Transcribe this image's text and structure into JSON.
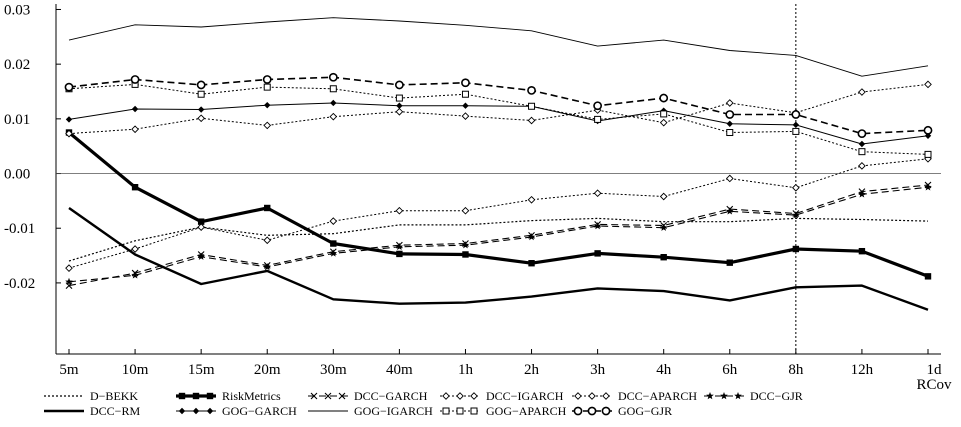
{
  "chart_data": {
    "type": "line",
    "title": "",
    "xlabel": "",
    "ylabel": "",
    "ylim": [
      -0.033,
      0.031
    ],
    "grid": false,
    "legend_position": "bottom",
    "categories": [
      "5m",
      "10m",
      "15m",
      "20m",
      "30m",
      "40m",
      "1h",
      "2h",
      "3h",
      "4h",
      "6h",
      "8h",
      "12h",
      "1d RCov"
    ],
    "y_ticks": [
      0.03,
      0.02,
      0.01,
      0.0,
      -0.01,
      -0.02
    ],
    "y_tick_labels": [
      "0.03",
      "0.02",
      "0.01",
      "0.00",
      "-0.01",
      "-0.02"
    ],
    "reference_line": 0.0,
    "vertical_marker": "8h",
    "series": [
      {
        "name": "D−BEKK",
        "color": "#000000",
        "dash": "2,2",
        "width": 1.2,
        "marker": "none",
        "values": [
          -0.016,
          -0.0123,
          -0.0098,
          -0.0113,
          -0.011,
          -0.0094,
          -0.0094,
          -0.0086,
          -0.0082,
          -0.0088,
          -0.0088,
          -0.0082,
          -0.0084,
          -0.0087
        ]
      },
      {
        "name": "RiskMetrics",
        "color": "#000000",
        "dash": "",
        "width": 3.2,
        "marker": "square-filled",
        "values": [
          0.0075,
          -0.0025,
          -0.0088,
          -0.0063,
          -0.0128,
          -0.0147,
          -0.0148,
          -0.0164,
          -0.0146,
          -0.0153,
          -0.0163,
          -0.0138,
          -0.0142,
          -0.0188
        ]
      },
      {
        "name": "DCC−GARCH",
        "color": "#000000",
        "dash": "7,4",
        "width": 1.1,
        "marker": "x",
        "values": [
          -0.0205,
          -0.0182,
          -0.0148,
          -0.0168,
          -0.0143,
          -0.0131,
          -0.0128,
          -0.0113,
          -0.0093,
          -0.0095,
          -0.0065,
          -0.0073,
          -0.0033,
          -0.0021
        ]
      },
      {
        "name": "DCC−IGARCH",
        "color": "#000000",
        "dash": "2,2",
        "width": 1.0,
        "marker": "diamond-open",
        "values": [
          0.0073,
          0.0081,
          0.0101,
          0.0088,
          0.0104,
          0.0113,
          0.0105,
          0.0097,
          0.0116,
          0.0093,
          0.0129,
          0.0111,
          0.0149,
          0.0163
        ]
      },
      {
        "name": "DCC−APARCH",
        "color": "#000000",
        "dash": "2,2",
        "width": 1.0,
        "marker": "diamond-open",
        "values": [
          -0.0173,
          -0.0138,
          -0.0098,
          -0.0122,
          -0.0087,
          -0.0068,
          -0.0068,
          -0.0048,
          -0.0036,
          -0.0042,
          -0.0009,
          -0.0026,
          0.0014,
          0.0027
        ]
      },
      {
        "name": "DCC−GJR",
        "color": "#000000",
        "dash": "7,4",
        "width": 1.1,
        "marker": "star",
        "values": [
          -0.0198,
          -0.0186,
          -0.0152,
          -0.0171,
          -0.0146,
          -0.0134,
          -0.0131,
          -0.0116,
          -0.0096,
          -0.0099,
          -0.0069,
          -0.0076,
          -0.0038,
          -0.0025
        ]
      },
      {
        "name": "DCC−RM",
        "color": "#000000",
        "dash": "",
        "width": 2.4,
        "marker": "none",
        "values": [
          -0.0063,
          -0.0148,
          -0.0202,
          -0.0178,
          -0.023,
          -0.0238,
          -0.0236,
          -0.0225,
          -0.021,
          -0.0215,
          -0.0232,
          -0.0208,
          -0.0205,
          -0.0249
        ]
      },
      {
        "name": "GOG−GARCH",
        "color": "#000000",
        "dash": "",
        "width": 1.0,
        "marker": "diamond-filled",
        "values": [
          0.0099,
          0.0118,
          0.0117,
          0.0125,
          0.0129,
          0.0124,
          0.0124,
          0.0123,
          0.0096,
          0.0115,
          0.0091,
          0.0089,
          0.0054,
          0.0069
        ]
      },
      {
        "name": "GOG−IGARCH",
        "color": "#000000",
        "dash": "",
        "width": 0.9,
        "marker": "none",
        "values": [
          0.0244,
          0.0272,
          0.0268,
          0.0277,
          0.0285,
          0.0279,
          0.0271,
          0.0261,
          0.0233,
          0.0244,
          0.0225,
          0.0216,
          0.0178,
          0.0197
        ]
      },
      {
        "name": "GOG−APARCH",
        "color": "#000000",
        "dash": "2,2",
        "width": 1.0,
        "marker": "square-open",
        "values": [
          0.0155,
          0.0163,
          0.0145,
          0.0158,
          0.0155,
          0.0138,
          0.0145,
          0.0123,
          0.0099,
          0.0109,
          0.0075,
          0.0077,
          0.004,
          0.0035
        ]
      },
      {
        "name": "GOG−GJR",
        "color": "#000000",
        "dash": "7,4",
        "width": 1.6,
        "marker": "circle-open",
        "values": [
          0.0158,
          0.0172,
          0.0162,
          0.0172,
          0.0176,
          0.0162,
          0.0166,
          0.0152,
          0.0124,
          0.0138,
          0.0108,
          0.0108,
          0.0073,
          0.0079
        ]
      }
    ],
    "legend_rows": [
      [
        "D−BEKK",
        "RiskMetrics",
        "DCC−GARCH",
        "DCC−IGARCH",
        "DCC−APARCH",
        "DCC−GJR"
      ],
      [
        "DCC−RM",
        "GOG−GARCH",
        "GOG−IGARCH",
        "GOG−APARCH",
        "GOG−GJR"
      ]
    ]
  }
}
